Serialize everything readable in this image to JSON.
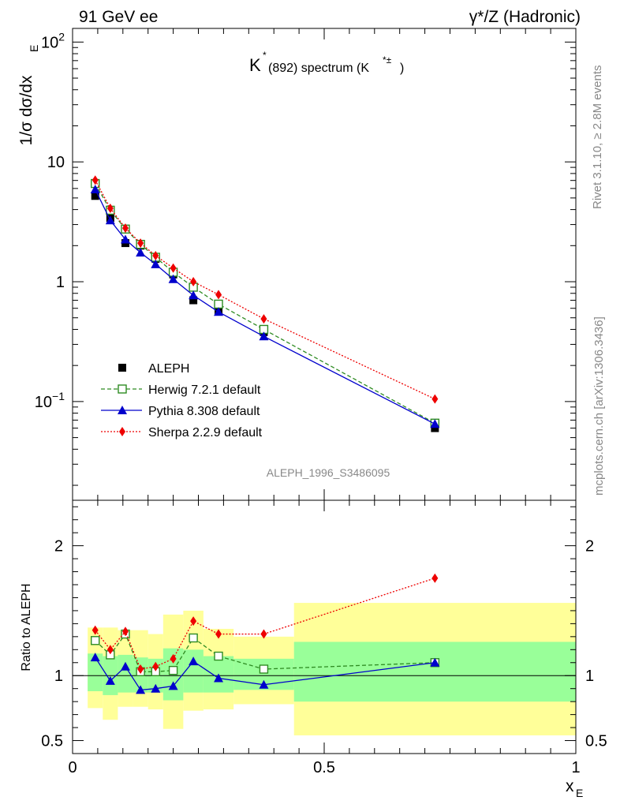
{
  "header": {
    "left": "91 GeV ee",
    "right": "γ*/Z (Hadronic)"
  },
  "side_labels": {
    "rivet": "Rivet 3.1.10, ≥ 2.8M events",
    "mcplots": "mcplots.cern.ch [arXiv:1306.3436]"
  },
  "analysis_id": "ALEPH_1996_S3486095",
  "colors": {
    "data": "#000000",
    "herwig": "#2e8b22",
    "pythia": "#0000cc",
    "sherpa": "#ee0000",
    "band_outer": "#ffff99",
    "band_inner": "#99ff99"
  },
  "chart_data": [
    {
      "type": "line",
      "title_main": "K",
      "title_sup": "*",
      "title_sub": "(892) spectrum (K",
      "title_sub_sup": "*±",
      "title_close": ")",
      "ylabel": "1/σ dσ/dx",
      "ylabel_sub": "E",
      "yscale": "log",
      "xlim": [
        0,
        1
      ],
      "ylim": [
        0.015,
        130
      ],
      "yticks": [
        {
          "v": 100,
          "base": "10",
          "exp": "2"
        },
        {
          "v": 10,
          "base": "10",
          "exp": ""
        },
        {
          "v": 1,
          "base": "1",
          "exp": ""
        },
        {
          "v": 0.1,
          "base": "10",
          "exp": "−1"
        }
      ],
      "x": [
        0.045,
        0.075,
        0.105,
        0.135,
        0.165,
        0.2,
        0.24,
        0.29,
        0.38,
        0.72
      ],
      "series": [
        {
          "name": "ALEPH",
          "marker": "square",
          "values": [
            5.2,
            3.4,
            2.1,
            2.0,
            1.55,
            1.15,
            0.7,
            0.57,
            0.38,
            0.06
          ]
        },
        {
          "name": "Herwig 7.2.1 default",
          "marker": "open-square",
          "dash": "5,3",
          "values": [
            6.6,
            3.95,
            2.75,
            2.05,
            1.6,
            1.2,
            0.9,
            0.65,
            0.4,
            0.066
          ]
        },
        {
          "name": "Pythia 8.308 default",
          "marker": "triangle",
          "dash": "",
          "values": [
            5.9,
            3.25,
            2.25,
            1.75,
            1.4,
            1.05,
            0.77,
            0.56,
            0.35,
            0.065
          ]
        },
        {
          "name": "Sherpa 2.2.9 default",
          "marker": "diamond",
          "dash": "2,2",
          "values": [
            7.05,
            4.1,
            2.8,
            2.1,
            1.65,
            1.3,
            1.0,
            0.78,
            0.49,
            0.105
          ]
        }
      ],
      "legend_position": "bottom-left"
    },
    {
      "type": "line",
      "ylabel": "Ratio to ALEPH",
      "xlabel": "x",
      "xlabel_sub": "E",
      "xlim": [
        0,
        1
      ],
      "ylim": [
        0.4,
        2.35
      ],
      "yticks": [
        {
          "v": 0.5,
          "label": "0.5"
        },
        {
          "v": 1,
          "label": "1"
        },
        {
          "v": 2,
          "label": "2"
        }
      ],
      "xticks": [
        {
          "v": 0,
          "label": "0"
        },
        {
          "v": 0.5,
          "label": "0.5"
        },
        {
          "v": 1,
          "label": "1"
        }
      ],
      "bins": [
        {
          "lo": 0.03,
          "hi": 0.06,
          "outer": [
            0.75,
            1.37
          ],
          "inner": [
            0.88,
            1.17
          ]
        },
        {
          "lo": 0.06,
          "hi": 0.09,
          "outer": [
            0.66,
            1.37
          ],
          "inner": [
            0.85,
            1.15
          ]
        },
        {
          "lo": 0.09,
          "hi": 0.12,
          "outer": [
            0.76,
            1.35
          ],
          "inner": [
            0.87,
            1.16
          ]
        },
        {
          "lo": 0.12,
          "hi": 0.15,
          "outer": [
            0.76,
            1.35
          ],
          "inner": [
            0.87,
            1.14
          ]
        },
        {
          "lo": 0.15,
          "hi": 0.18,
          "outer": [
            0.74,
            1.32
          ],
          "inner": [
            0.87,
            1.13
          ]
        },
        {
          "lo": 0.18,
          "hi": 0.22,
          "outer": [
            0.59,
            1.47
          ],
          "inner": [
            0.81,
            1.21
          ]
        },
        {
          "lo": 0.22,
          "hi": 0.26,
          "outer": [
            0.73,
            1.5
          ],
          "inner": [
            0.87,
            1.2
          ]
        },
        {
          "lo": 0.26,
          "hi": 0.32,
          "outer": [
            0.74,
            1.36
          ],
          "inner": [
            0.87,
            1.15
          ]
        },
        {
          "lo": 0.32,
          "hi": 0.44,
          "outer": [
            0.78,
            1.3
          ],
          "inner": [
            0.89,
            1.13
          ]
        },
        {
          "lo": 0.44,
          "hi": 1.0,
          "outer": [
            0.54,
            1.56
          ],
          "inner": [
            0.8,
            1.26
          ]
        }
      ],
      "x": [
        0.045,
        0.075,
        0.105,
        0.135,
        0.165,
        0.2,
        0.24,
        0.29,
        0.38,
        0.72
      ],
      "series": [
        {
          "name": "ALEPH",
          "marker": "square",
          "values": [
            null,
            null,
            null,
            null,
            null,
            null,
            null,
            null,
            null,
            1.1
          ]
        },
        {
          "name": "Herwig 7.2.1 default",
          "marker": "open-square",
          "dash": "5,3",
          "values": [
            1.27,
            1.16,
            1.32,
            1.03,
            1.03,
            1.04,
            1.29,
            1.15,
            1.05,
            1.1
          ]
        },
        {
          "name": "Pythia 8.308 default",
          "marker": "triangle",
          "dash": "",
          "values": [
            1.14,
            0.96,
            1.07,
            0.89,
            0.9,
            0.92,
            1.11,
            0.98,
            0.93,
            1.1
          ]
        },
        {
          "name": "Sherpa 2.2.9 default",
          "marker": "diamond",
          "dash": "2,2",
          "values": [
            1.35,
            1.2,
            1.34,
            1.05,
            1.07,
            1.13,
            1.42,
            1.32,
            1.32,
            1.75
          ]
        }
      ]
    }
  ]
}
